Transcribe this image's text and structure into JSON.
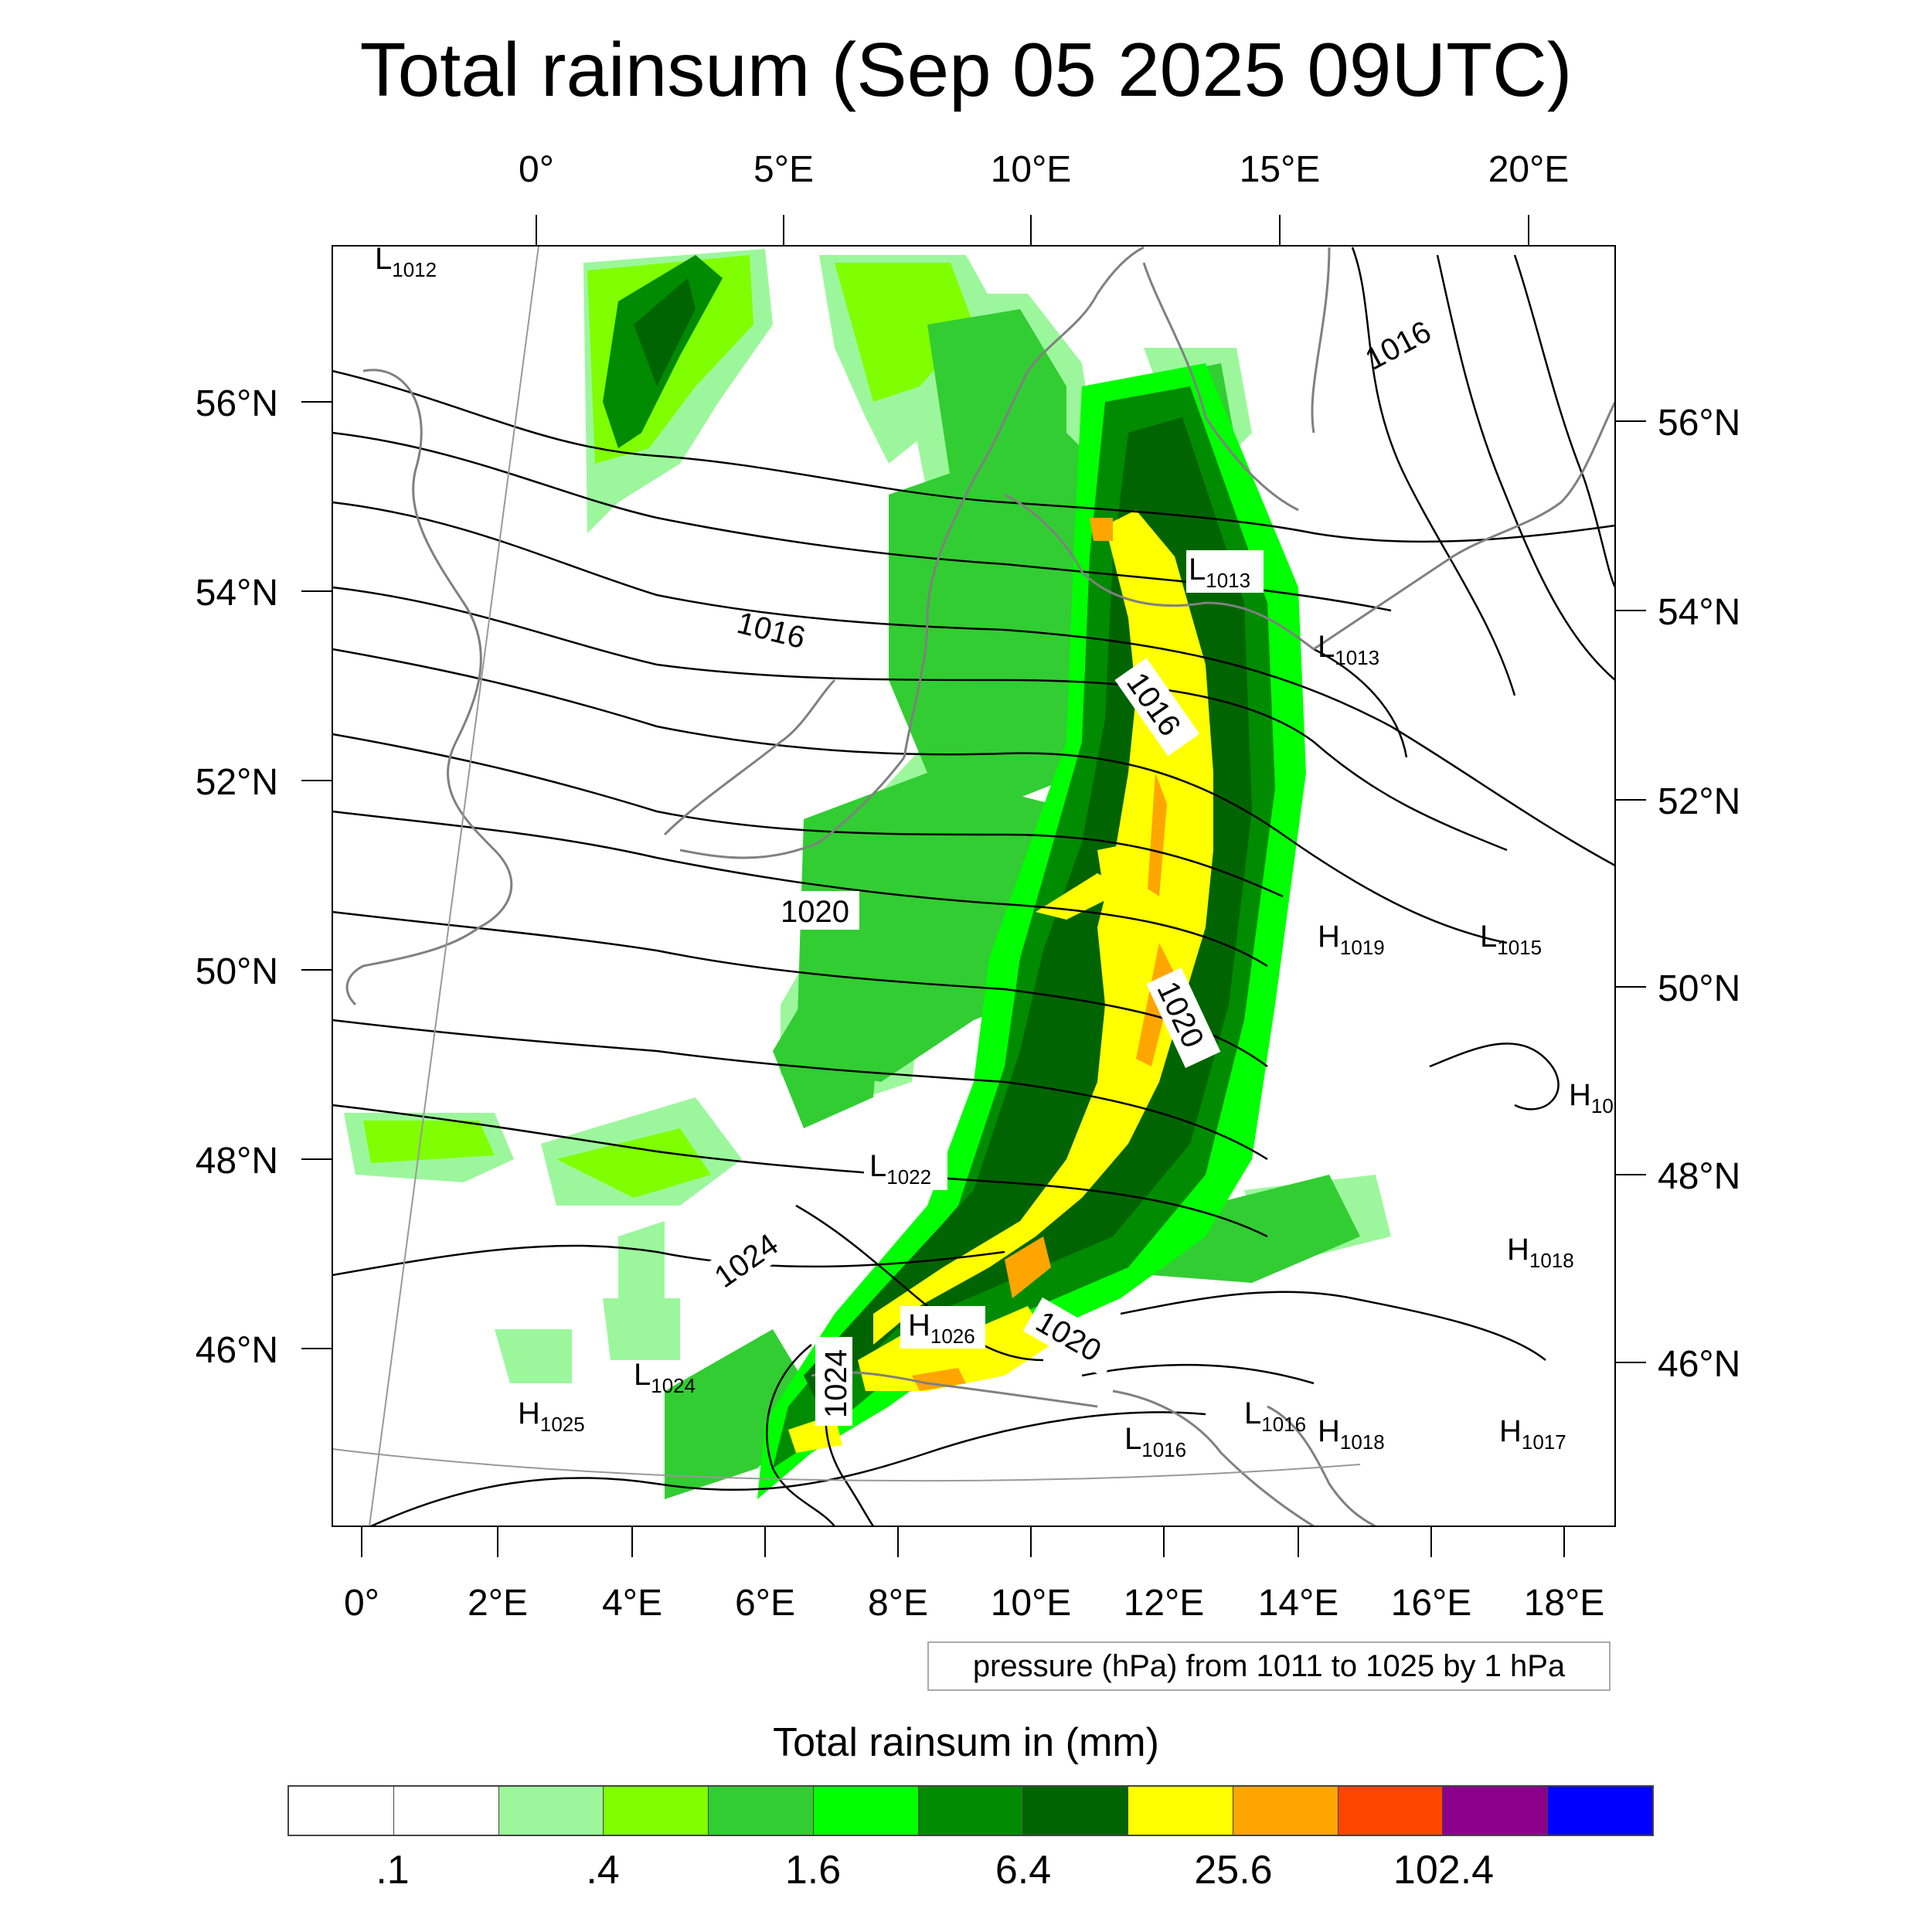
{
  "title": "Total rainsum (Sep 05 2025 09UTC)",
  "top_lon_labels": [
    "0°",
    "5°E",
    "10°E",
    "15°E",
    "20°E"
  ],
  "bottom_lon_labels": [
    "0°",
    "2°E",
    "4°E",
    "6°E",
    "8°E",
    "10°E",
    "12°E",
    "14°E",
    "16°E",
    "18°E"
  ],
  "left_lat_labels": [
    "56°N",
    "54°N",
    "52°N",
    "50°N",
    "48°N",
    "46°N"
  ],
  "right_lat_labels": [
    "56°N",
    "54°N",
    "52°N",
    "50°N",
    "48°N",
    "46°N"
  ],
  "contour_labels": [
    "1016",
    "1016",
    "1016",
    "1020",
    "1020",
    "1020",
    "1024",
    "1024"
  ],
  "pressure_centers": [
    {
      "t": "L",
      "v": "1012"
    },
    {
      "t": "L",
      "v": "1013"
    },
    {
      "t": "L",
      "v": "1013"
    },
    {
      "t": "H",
      "v": "1019"
    },
    {
      "t": "L",
      "v": "1015"
    },
    {
      "t": "H",
      "v": "10"
    },
    {
      "t": "L",
      "v": "1022"
    },
    {
      "t": "H",
      "v": "1018"
    },
    {
      "t": "H",
      "v": "1026"
    },
    {
      "t": "L",
      "v": "1024"
    },
    {
      "t": "H",
      "v": "1025"
    },
    {
      "t": "L",
      "v": "1016"
    },
    {
      "t": "L",
      "v": "1016"
    },
    {
      "t": "H",
      "v": "1018"
    },
    {
      "t": "H",
      "v": "1017"
    }
  ],
  "info_box": "pressure (hPa) from 1011 to 1025 by 1 hPa",
  "colorbar": {
    "title": "Total rainsum in (mm)",
    "colors": [
      "#ffffff",
      "#ffffff",
      "#9cf79c",
      "#7fff00",
      "#32cd32",
      "#00ff00",
      "#008b00",
      "#006400",
      "#ffff00",
      "#ffa500",
      "#ff4500",
      "#8b008b",
      "#0000ff"
    ],
    "labels": [
      ".1",
      ".4",
      "1.6",
      "6.4",
      "25.6",
      "102.4"
    ]
  }
}
